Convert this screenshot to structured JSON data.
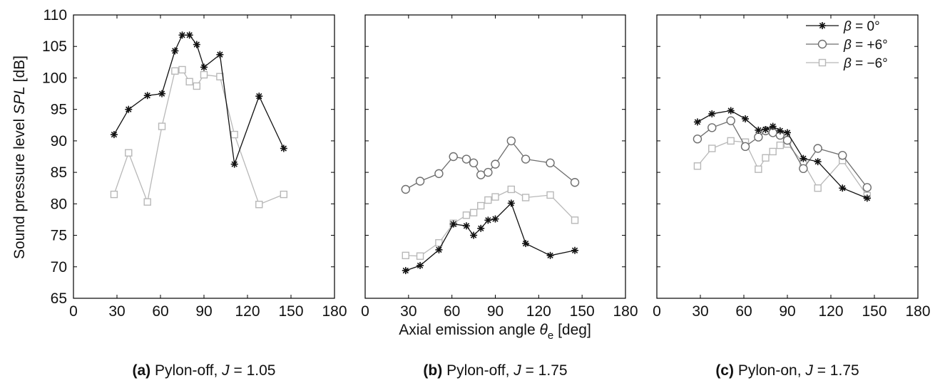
{
  "figure": {
    "ylabel_prefix": "Sound pressure level ",
    "ylabel_var": "SPL",
    "ylabel_unit": " [dB]",
    "xlabel_prefix": "Axial emission angle ",
    "xlabel_var": "θ",
    "xlabel_sub": "e",
    "xlabel_unit": " [deg]"
  },
  "legend": [
    {
      "beta": "β",
      "eq": " = ",
      "val": "  0°",
      "marker": "star"
    },
    {
      "beta": "β",
      "eq": " = ",
      "val": "+6°",
      "marker": "circle"
    },
    {
      "beta": "β",
      "eq": " = ",
      "val": "−6°",
      "marker": "square"
    }
  ],
  "colors": {
    "beta0": "#111111",
    "beta_plus6": "#6e6e6e",
    "beta_minus6": "#b8b8b8"
  },
  "chart_data": [
    {
      "type": "line",
      "caption_tag": "(a)",
      "caption_text": " Pylon-off, ",
      "caption_var": "J",
      "caption_val": " = 1.05",
      "xlim": [
        0,
        180
      ],
      "ylim": [
        65,
        110
      ],
      "xticks": [
        0,
        30,
        60,
        90,
        120,
        150,
        180
      ],
      "yticks": [
        65,
        70,
        75,
        80,
        85,
        90,
        95,
        100,
        105,
        110
      ],
      "series": [
        {
          "key": "b0",
          "marker": "star",
          "color": "#111111",
          "x": [
            28,
            38,
            51,
            61,
            70,
            75,
            80,
            85,
            90,
            101,
            111,
            128,
            145
          ],
          "y": [
            91.0,
            95.0,
            97.2,
            97.5,
            104.3,
            106.8,
            106.8,
            105.3,
            101.7,
            103.7,
            86.3,
            97.1,
            88.8
          ]
        },
        {
          "key": "bm6",
          "marker": "square",
          "color": "#b8b8b8",
          "x": [
            28,
            38,
            51,
            61,
            70,
            75,
            80,
            85,
            90,
            101,
            111,
            128,
            145
          ],
          "y": [
            81.5,
            88.1,
            80.3,
            92.3,
            101.1,
            101.3,
            99.4,
            98.7,
            100.5,
            100.2,
            91.0,
            79.9,
            81.5
          ]
        }
      ]
    },
    {
      "type": "line",
      "caption_tag": "(b)",
      "caption_text": " Pylon-off, ",
      "caption_var": "J",
      "caption_val": " = 1.75",
      "xlim": [
        0,
        180
      ],
      "ylim": [
        65,
        110
      ],
      "xticks": [
        0,
        30,
        60,
        90,
        120,
        150,
        180
      ],
      "yticks": [
        65,
        70,
        75,
        80,
        85,
        90,
        95,
        100,
        105,
        110
      ],
      "series": [
        {
          "key": "b0",
          "marker": "star",
          "color": "#111111",
          "x": [
            28,
            38,
            51,
            61,
            70,
            75,
            80,
            85,
            90,
            101,
            111,
            128,
            145
          ],
          "y": [
            69.4,
            70.2,
            72.7,
            76.8,
            76.5,
            75.0,
            76.1,
            77.4,
            77.6,
            80.1,
            73.7,
            71.8,
            72.6
          ]
        },
        {
          "key": "bp6",
          "marker": "circle",
          "color": "#6e6e6e",
          "x": [
            28,
            38,
            51,
            61,
            70,
            75,
            80,
            85,
            90,
            101,
            111,
            128,
            145
          ],
          "y": [
            82.3,
            83.6,
            84.8,
            87.5,
            87.1,
            86.5,
            84.6,
            85.0,
            86.3,
            90.0,
            87.1,
            86.5,
            83.4
          ]
        },
        {
          "key": "bm6",
          "marker": "square",
          "color": "#b8b8b8",
          "x": [
            28,
            38,
            51,
            61,
            70,
            75,
            80,
            85,
            90,
            101,
            111,
            128,
            145
          ],
          "y": [
            71.8,
            71.7,
            73.8,
            76.9,
            78.2,
            78.6,
            79.7,
            80.6,
            81.1,
            82.3,
            81.0,
            81.4,
            77.4
          ]
        }
      ]
    },
    {
      "type": "line",
      "caption_tag": "(c)",
      "caption_text": " Pylon-on, ",
      "caption_var": "J",
      "caption_val": " = 1.75",
      "xlim": [
        0,
        180
      ],
      "ylim": [
        65,
        110
      ],
      "xticks": [
        0,
        30,
        60,
        90,
        120,
        150,
        180
      ],
      "yticks": [
        65,
        70,
        75,
        80,
        85,
        90,
        95,
        100,
        105,
        110
      ],
      "legend": "top-right",
      "series": [
        {
          "key": "b0",
          "marker": "star",
          "color": "#111111",
          "x": [
            28,
            38,
            51,
            61,
            70,
            75,
            80,
            85,
            90,
            101,
            111,
            128,
            145
          ],
          "y": [
            93.0,
            94.3,
            94.8,
            93.5,
            91.7,
            91.8,
            92.3,
            91.6,
            91.3,
            87.2,
            86.7,
            82.5,
            80.9
          ]
        },
        {
          "key": "bp6",
          "marker": "circle",
          "color": "#6e6e6e",
          "x": [
            28,
            38,
            51,
            61,
            70,
            75,
            80,
            85,
            90,
            101,
            111,
            128,
            145
          ],
          "y": [
            90.3,
            92.1,
            93.2,
            89.1,
            90.6,
            91.6,
            91.3,
            90.9,
            90.1,
            85.6,
            88.8,
            87.7,
            82.6
          ]
        },
        {
          "key": "bm6",
          "marker": "square",
          "color": "#b8b8b8",
          "x": [
            28,
            38,
            51,
            61,
            70,
            75,
            80,
            85,
            90,
            101,
            111,
            128,
            145
          ],
          "y": [
            86.0,
            88.8,
            90.0,
            89.8,
            85.5,
            87.3,
            88.3,
            89.3,
            89.5,
            86.5,
            82.5,
            86.9,
            81.3
          ]
        }
      ]
    }
  ]
}
